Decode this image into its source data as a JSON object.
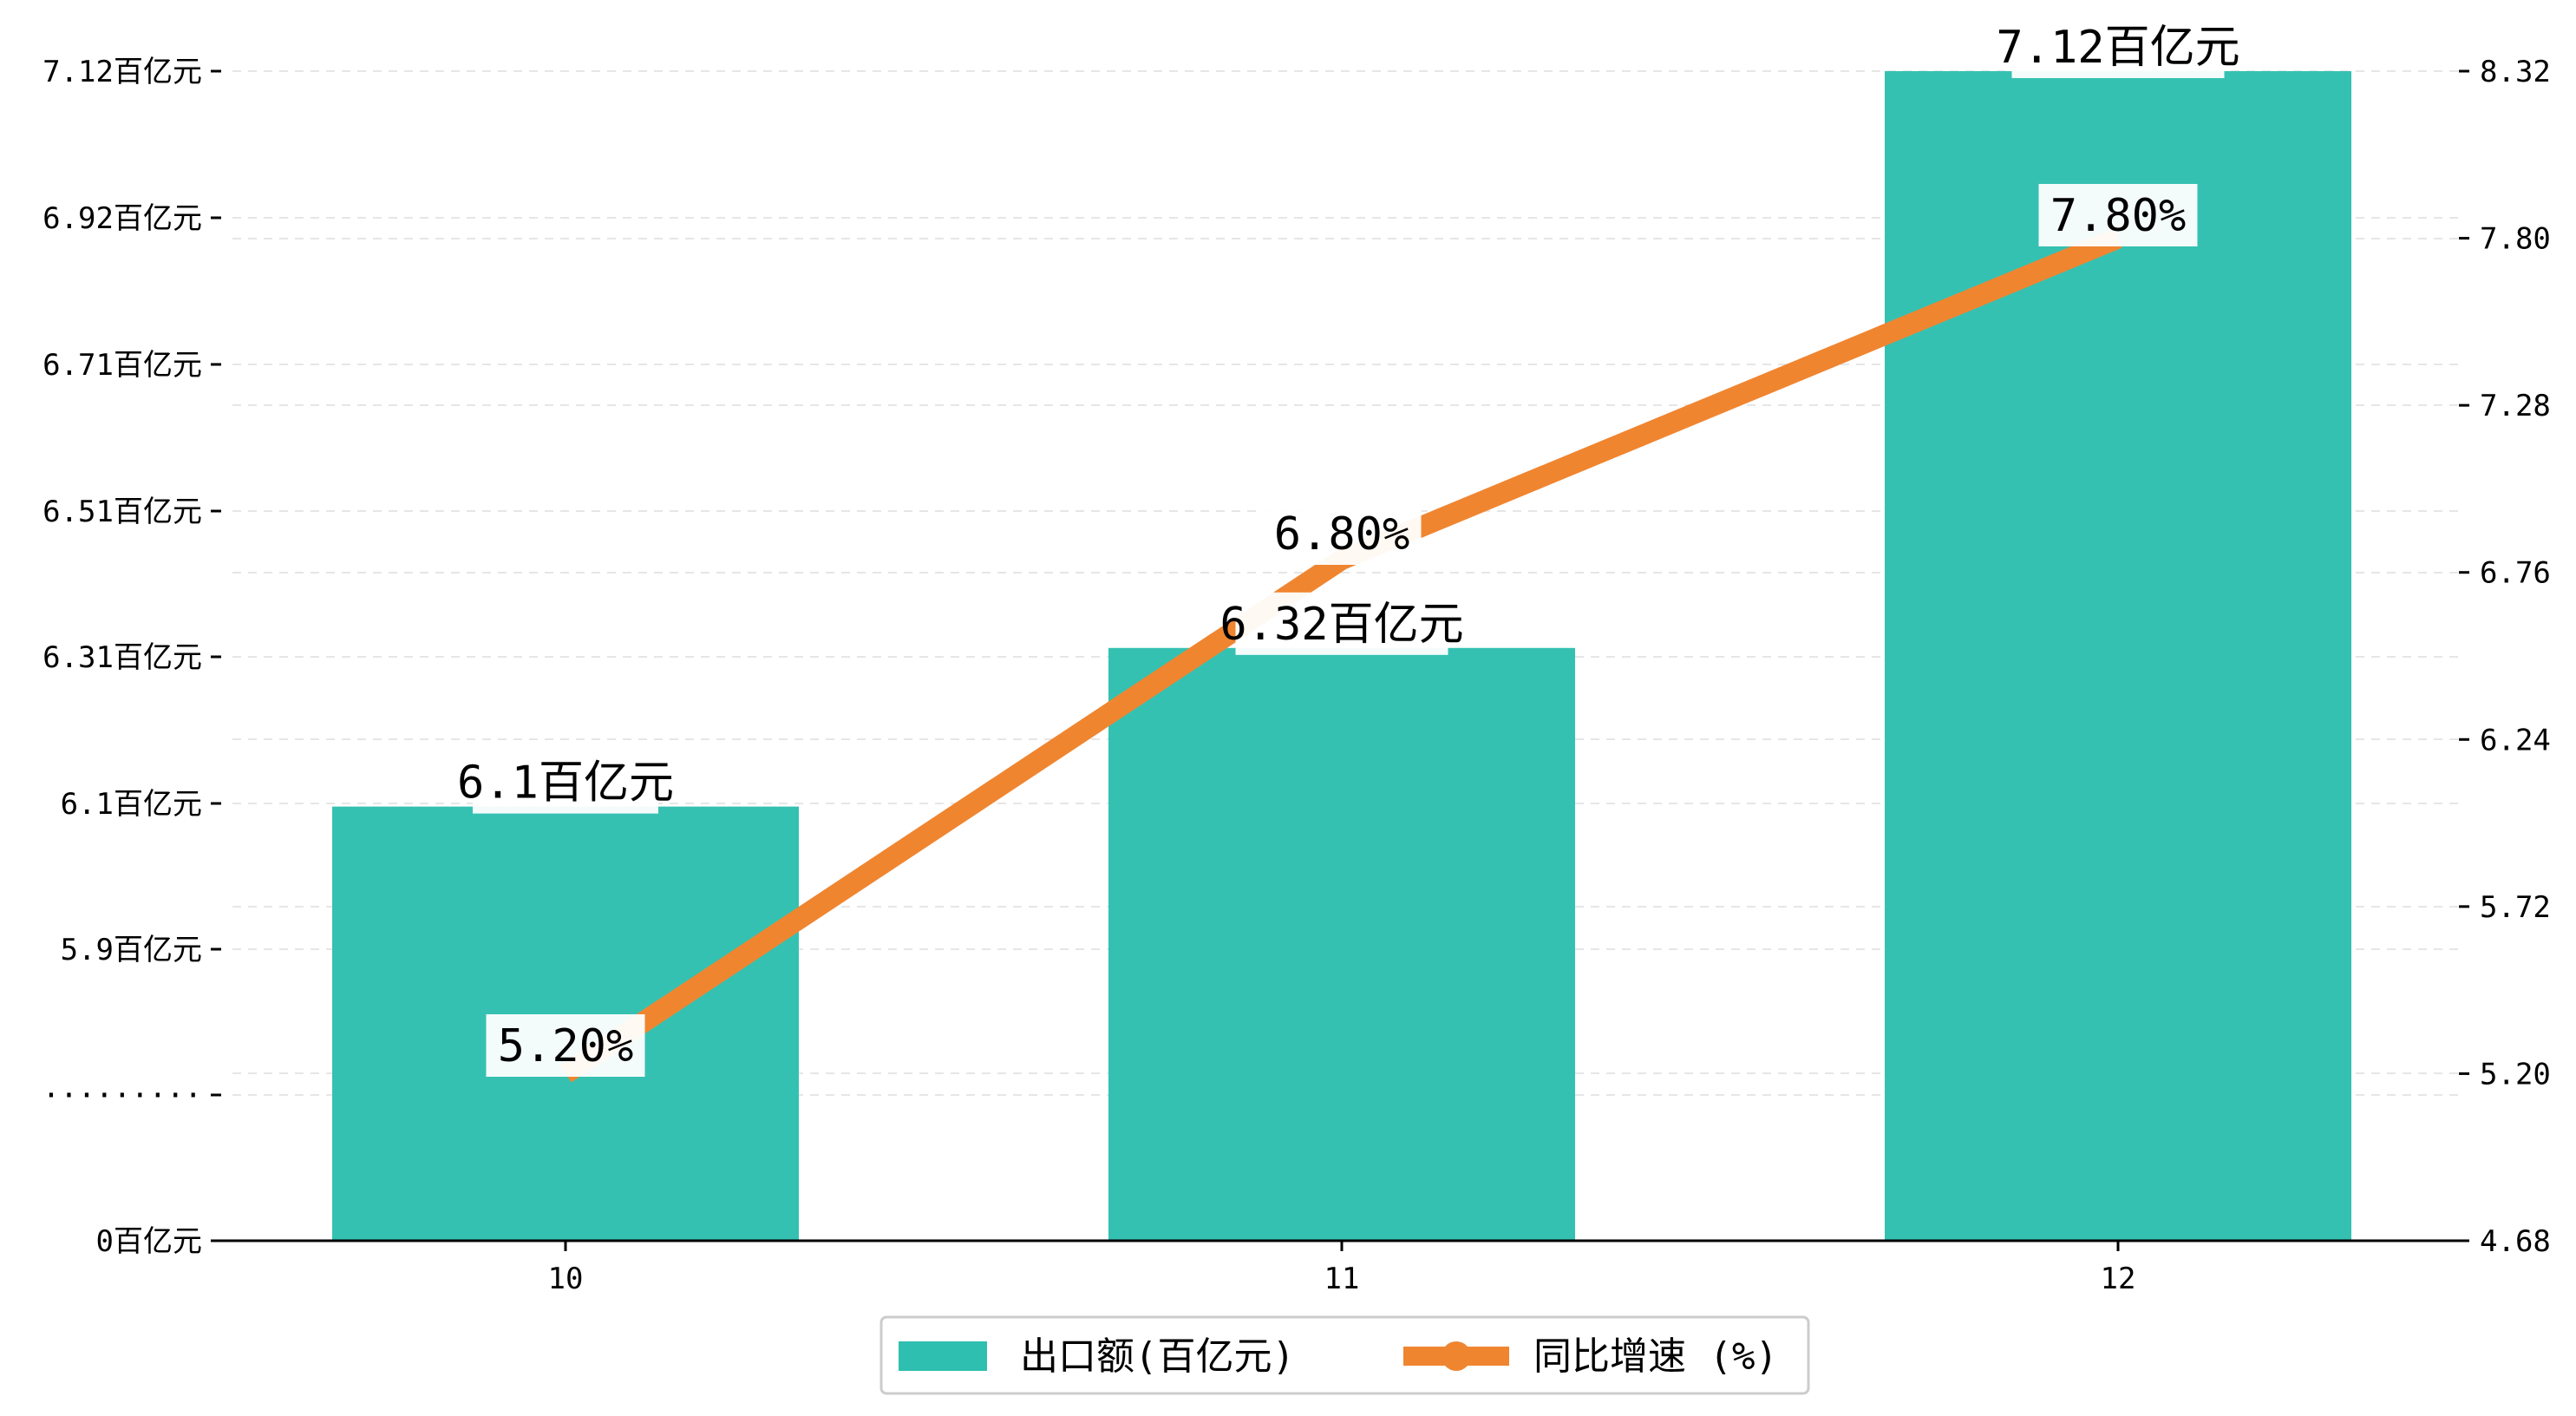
{
  "chart_data": {
    "type": "bar",
    "categories": [
      "10",
      "11",
      "12"
    ],
    "series": [
      {
        "name": "出口额(百亿元)",
        "type": "bar",
        "axis": "left",
        "values": [
          6.1,
          6.32,
          7.12
        ],
        "labels": [
          "6.1百亿元",
          "6.32百亿元",
          "7.12百亿元"
        ]
      },
      {
        "name": "同比增速 (%)",
        "type": "line",
        "axis": "right",
        "values": [
          5.2,
          6.8,
          7.8
        ],
        "labels": [
          "5.20%",
          "6.80%",
          "7.80%"
        ]
      }
    ],
    "y_left": {
      "tick_labels": [
        "0百亿元",
        "·········",
        "5.9百亿元",
        "6.1百亿元",
        "6.31百亿元",
        "6.51百亿元",
        "6.71百亿元",
        "6.92百亿元",
        "7.12百亿元"
      ],
      "tick_values": [
        0,
        null,
        5.9,
        6.1,
        6.31,
        6.51,
        6.71,
        6.92,
        7.12
      ],
      "broken_axis": true
    },
    "y_right": {
      "ylim": [
        4.68,
        8.32
      ],
      "tick_labels": [
        "4.68",
        "5.20",
        "5.72",
        "6.24",
        "6.76",
        "7.28",
        "7.80",
        "8.32"
      ]
    },
    "grid": true,
    "legend": "bottom-center",
    "colors": {
      "bar": "#2ebfb0",
      "line": "#f08530"
    }
  }
}
